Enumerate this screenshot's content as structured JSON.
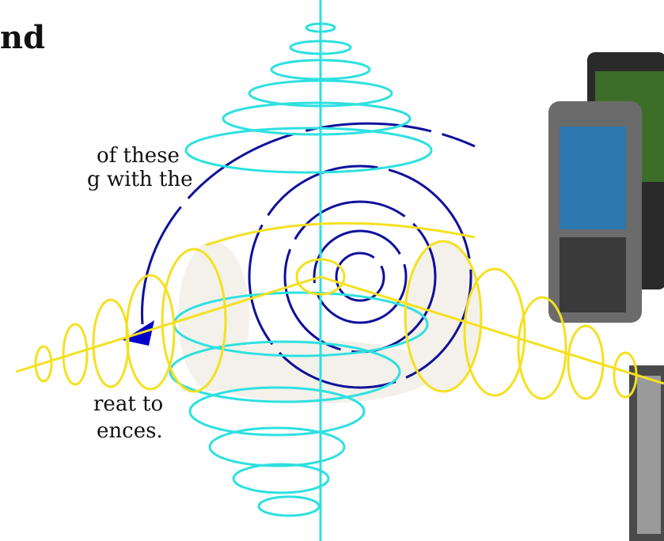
{
  "heading": "nd",
  "paragraphs": [
    {
      "lines": [
        "of these",
        "g with the"
      ]
    },
    {
      "lines": [
        "reat to",
        "ences."
      ]
    }
  ]
}
